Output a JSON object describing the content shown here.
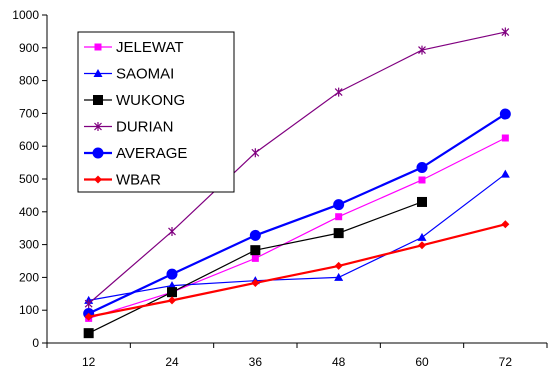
{
  "chart_data": {
    "type": "line",
    "x": [
      12,
      24,
      36,
      48,
      60,
      72
    ],
    "ylim": [
      0,
      1000
    ],
    "yticks": [
      0,
      100,
      200,
      300,
      400,
      500,
      600,
      700,
      800,
      900,
      1000
    ],
    "grid": false,
    "legend_position": "top-left",
    "series": [
      {
        "name": "JELEWAT",
        "color": "#ff00ff",
        "marker": "square",
        "values": [
          75,
          155,
          258,
          385,
          497,
          625
        ]
      },
      {
        "name": "SAOMAI",
        "color": "#0000ff",
        "marker": "triangle",
        "values": [
          130,
          175,
          190,
          200,
          322,
          515
        ]
      },
      {
        "name": "WUKONG",
        "color": "#000000",
        "marker": "square",
        "values": [
          30,
          155,
          283,
          335,
          430,
          null
        ]
      },
      {
        "name": "DURIAN",
        "color": "#800080",
        "marker": "star",
        "values": [
          120,
          340,
          580,
          765,
          893,
          948
        ]
      },
      {
        "name": "AVERAGE",
        "color": "#0000ff",
        "marker": "circle",
        "values": [
          90,
          210,
          328,
          422,
          535,
          698
        ]
      },
      {
        "name": "WBAR",
        "color": "#ff0000",
        "marker": "diamond",
        "values": [
          80,
          130,
          183,
          235,
          298,
          362
        ]
      }
    ]
  }
}
